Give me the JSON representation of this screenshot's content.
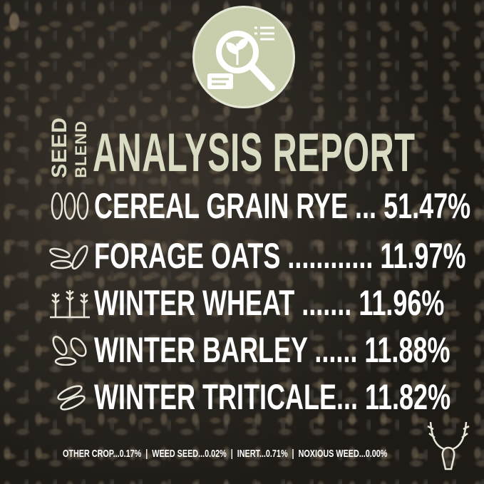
{
  "title": {
    "prefix1": "SEED",
    "prefix2": "BLEND",
    "main": "ANALYSIS REPORT"
  },
  "colors": {
    "title": "#d9dcc2",
    "logo_circle": "#c8ceac",
    "text": "#ffffff"
  },
  "logo_icon": "plant-magnifier-report-icon",
  "items": [
    {
      "icon": "rye-grain-icon",
      "name": "CEREAL GRAIN RYE",
      "leader": " ... ",
      "value": "51.47%"
    },
    {
      "icon": "oats-icon",
      "name": "FORAGE OATS",
      "leader": " ............ ",
      "value": "11.97%"
    },
    {
      "icon": "wheat-icon",
      "name": "WINTER WHEAT",
      "leader": " ....... ",
      "value": "11.96%"
    },
    {
      "icon": "barley-icon",
      "name": "WINTER BARLEY",
      "leader": " ...... ",
      "value": "11.88%"
    },
    {
      "icon": "triticale-icon",
      "name": "WINTER TRITICALE",
      "leader": "... ",
      "value": "11.82%"
    }
  ],
  "footer": "OTHER CROP...0.17%  |  WEED SEED...0.02%  |  INERT...0.71%  |  NOXIOUS WEED...0.00%",
  "brand_icon": "deer-skull-icon"
}
